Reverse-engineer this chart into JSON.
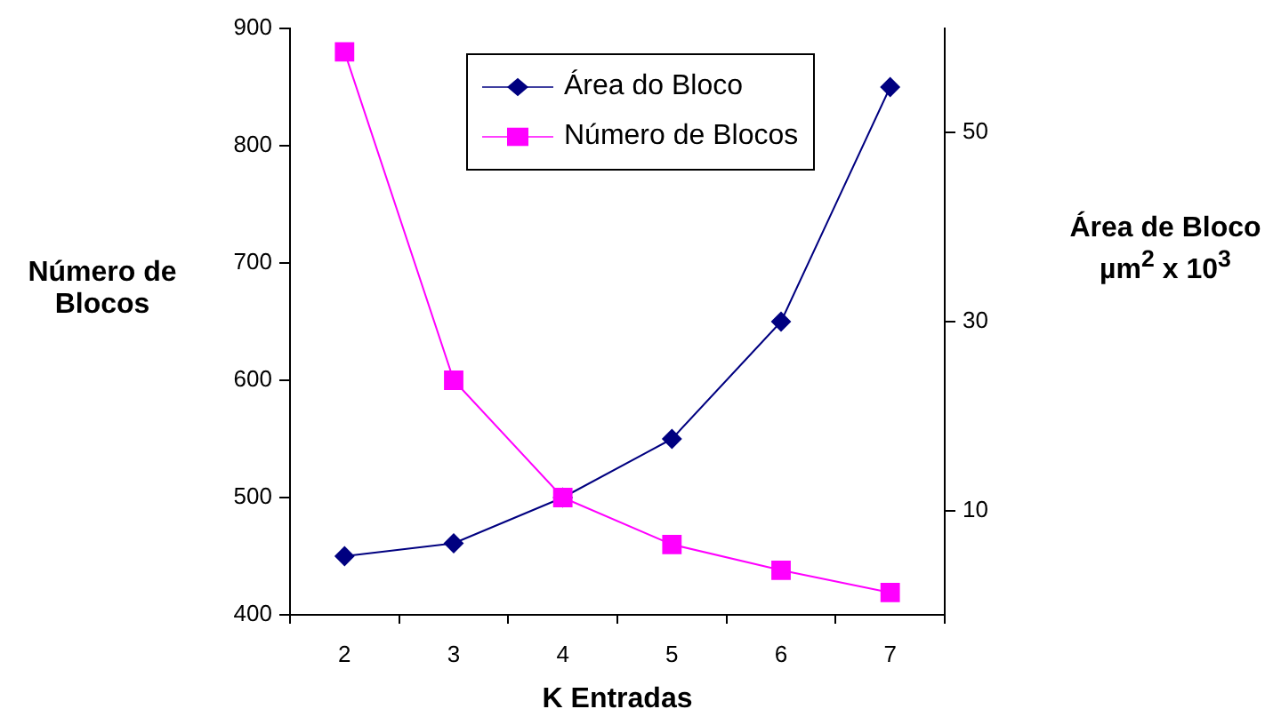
{
  "chart_data": {
    "type": "line",
    "xlabel": "K Entradas",
    "ylabel": "Número de Blocos",
    "y2label": "Área de Bloco µm$^{2}$ x 10$^{3}$",
    "categories": [
      "2",
      "3",
      "4",
      "5",
      "6",
      "7"
    ],
    "series": [
      {
        "name": "Área do Bloco",
        "color": "#000080",
        "marker": "diamond",
        "values": [
          450,
          461,
          500,
          550,
          650,
          850
        ]
      },
      {
        "name": "Número de Blocos",
        "color": "#ff00ff",
        "marker": "square",
        "values": [
          880,
          600,
          500,
          460,
          438,
          419
        ]
      }
    ],
    "ylim": [
      400,
      900
    ],
    "yticks": [
      400,
      500,
      600,
      700,
      800,
      900
    ],
    "y2lim": [
      -1,
      61
    ],
    "y2ticks": [
      10,
      30,
      50
    ],
    "grid": false,
    "legend": "top",
    "line_style": "solid"
  }
}
